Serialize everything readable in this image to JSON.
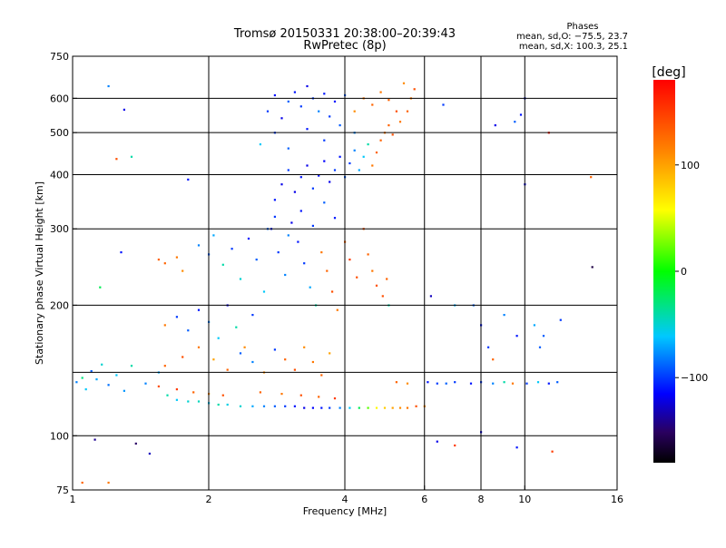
{
  "chart_data": {
    "type": "scatter",
    "title": "Tromsø 20150331 20:38:00–20:39:43",
    "subtitle": "RwPretec (8p)",
    "xlabel": "Frequency [MHz]",
    "ylabel": "Stationary phase Virtual Height [km]",
    "x_scale": "log",
    "y_scale": "log",
    "xlim": [
      1,
      16
    ],
    "ylim": [
      75,
      750
    ],
    "x_ticks": [
      1,
      2,
      4,
      6,
      8,
      10,
      16
    ],
    "x_tick_labels": [
      "1",
      "2",
      "4",
      "6",
      "8",
      "10",
      "16"
    ],
    "x_grid": [
      2,
      4,
      6,
      8,
      10
    ],
    "y_ticks": [
      75,
      100,
      200,
      300,
      400,
      500,
      600,
      750
    ],
    "y_tick_labels": [
      "75",
      "100",
      "200",
      "300",
      "400",
      "500",
      "600",
      "750"
    ],
    "y_grid": [
      100,
      140,
      200,
      300,
      400,
      500,
      600
    ],
    "grid": true,
    "phase_info": {
      "heading": "Phases",
      "line_o": "mean, sd,O: −75.5, 23.7",
      "line_x": "mean, sd,X: 100.3, 25.1"
    },
    "colorbar": {
      "label": "[deg]",
      "range": [
        -180,
        180
      ],
      "ticks": [
        100,
        0,
        -100
      ],
      "tick_labels": [
        "100",
        "0",
        "−100"
      ]
    },
    "series": [
      {
        "values": [
          [
            1.02,
            133,
            -80
          ],
          [
            1.05,
            136,
            -30
          ],
          [
            1.07,
            128,
            -60
          ],
          [
            1.1,
            141,
            -90
          ],
          [
            1.13,
            135,
            -70
          ],
          [
            1.16,
            146,
            -50
          ],
          [
            1.2,
            131,
            -85
          ],
          [
            1.25,
            138,
            -60
          ],
          [
            1.3,
            127,
            -75
          ],
          [
            1.35,
            145,
            -40
          ],
          [
            1.45,
            132,
            -80
          ],
          [
            1.55,
            140,
            -70
          ],
          [
            1.62,
            124,
            -40
          ],
          [
            1.7,
            121,
            -60
          ],
          [
            1.8,
            120,
            -50
          ],
          [
            1.9,
            120,
            -45
          ],
          [
            2.0,
            119,
            -60
          ],
          [
            2.1,
            118,
            -40
          ],
          [
            2.2,
            118,
            -55
          ],
          [
            2.35,
            117,
            -50
          ],
          [
            2.5,
            117,
            -70
          ],
          [
            2.65,
            117,
            -80
          ],
          [
            2.8,
            117,
            -90
          ],
          [
            2.95,
            117,
            -100
          ],
          [
            3.1,
            117,
            -110
          ],
          [
            3.25,
            116,
            -120
          ],
          [
            3.4,
            116,
            -115
          ],
          [
            3.55,
            116,
            -110
          ],
          [
            3.7,
            116,
            -100
          ],
          [
            3.9,
            116,
            -80
          ],
          [
            4.1,
            116,
            -60
          ],
          [
            4.3,
            116,
            -20
          ],
          [
            4.5,
            116,
            20
          ],
          [
            4.7,
            116,
            60
          ],
          [
            4.9,
            116,
            80
          ],
          [
            5.1,
            116,
            100
          ],
          [
            5.3,
            116,
            110
          ],
          [
            5.5,
            116,
            120
          ],
          [
            5.75,
            117,
            140
          ],
          [
            6.0,
            117,
            110
          ],
          [
            5.2,
            133,
            130
          ],
          [
            5.5,
            132,
            110
          ],
          [
            6.1,
            133,
            -110
          ],
          [
            6.4,
            132,
            -100
          ],
          [
            6.7,
            132,
            -90
          ],
          [
            7.0,
            133,
            -100
          ],
          [
            7.6,
            132,
            -110
          ],
          [
            8.0,
            133,
            -100
          ],
          [
            8.5,
            132,
            -80
          ],
          [
            9.0,
            133,
            -40
          ],
          [
            9.4,
            132,
            120
          ],
          [
            10.1,
            132,
            -100
          ],
          [
            10.7,
            133,
            -60
          ],
          [
            11.3,
            132,
            -110
          ],
          [
            11.8,
            133,
            -90
          ],
          [
            1.6,
            180,
            120
          ],
          [
            1.7,
            188,
            -100
          ],
          [
            1.8,
            175,
            -90
          ],
          [
            1.9,
            195,
            -110
          ],
          [
            2.0,
            183,
            -80
          ],
          [
            2.1,
            168,
            -60
          ],
          [
            2.2,
            200,
            -120
          ],
          [
            2.3,
            178,
            -40
          ],
          [
            2.4,
            160,
            110
          ],
          [
            2.5,
            190,
            -100
          ],
          [
            1.6,
            145,
            130
          ],
          [
            1.75,
            152,
            140
          ],
          [
            1.9,
            160,
            120
          ],
          [
            2.05,
            150,
            100
          ],
          [
            2.2,
            142,
            130
          ],
          [
            2.35,
            155,
            -90
          ],
          [
            2.5,
            148,
            -80
          ],
          [
            2.65,
            140,
            110
          ],
          [
            2.8,
            158,
            -100
          ],
          [
            2.95,
            150,
            130
          ],
          [
            3.1,
            142,
            140
          ],
          [
            3.25,
            160,
            110
          ],
          [
            3.4,
            148,
            120
          ],
          [
            3.55,
            138,
            130
          ],
          [
            3.7,
            155,
            100
          ],
          [
            1.55,
            130,
            140
          ],
          [
            1.7,
            128,
            150
          ],
          [
            1.85,
            126,
            130
          ],
          [
            2.0,
            125,
            110
          ],
          [
            2.15,
            124,
            140
          ],
          [
            2.6,
            126,
            130
          ],
          [
            2.9,
            125,
            120
          ],
          [
            3.2,
            124,
            140
          ],
          [
            3.5,
            123,
            130
          ],
          [
            3.8,
            122,
            150
          ],
          [
            1.6,
            250,
            130
          ],
          [
            1.7,
            258,
            120
          ],
          [
            1.75,
            240,
            110
          ],
          [
            1.9,
            275,
            -80
          ],
          [
            2.0,
            262,
            -90
          ],
          [
            2.05,
            290,
            -70
          ],
          [
            2.15,
            248,
            -40
          ],
          [
            2.25,
            270,
            -100
          ],
          [
            2.35,
            230,
            -50
          ],
          [
            2.45,
            285,
            -110
          ],
          [
            2.55,
            255,
            -90
          ],
          [
            2.65,
            215,
            -60
          ],
          [
            2.75,
            300,
            -110
          ],
          [
            2.85,
            265,
            -100
          ],
          [
            2.95,
            235,
            -80
          ],
          [
            3.05,
            310,
            -120
          ],
          [
            3.15,
            280,
            -110
          ],
          [
            3.25,
            250,
            -100
          ],
          [
            3.35,
            220,
            -70
          ],
          [
            3.45,
            200,
            -40
          ],
          [
            3.55,
            265,
            120
          ],
          [
            3.65,
            240,
            130
          ],
          [
            3.75,
            215,
            140
          ],
          [
            3.85,
            195,
            120
          ],
          [
            4.0,
            280,
            130
          ],
          [
            4.1,
            255,
            150
          ],
          [
            4.25,
            232,
            140
          ],
          [
            4.4,
            300,
            140
          ],
          [
            4.5,
            262,
            130
          ],
          [
            4.6,
            240,
            120
          ],
          [
            4.7,
            222,
            140
          ],
          [
            4.85,
            210,
            140
          ],
          [
            4.95,
            230,
            130
          ],
          [
            2.8,
            350,
            -110
          ],
          [
            2.9,
            380,
            -120
          ],
          [
            3.0,
            410,
            -100
          ],
          [
            3.1,
            365,
            -120
          ],
          [
            3.2,
            395,
            -110
          ],
          [
            3.3,
            420,
            -120
          ],
          [
            3.4,
            372,
            -100
          ],
          [
            3.5,
            398,
            -110
          ],
          [
            3.6,
            430,
            -115
          ],
          [
            3.7,
            385,
            -120
          ],
          [
            3.8,
            410,
            -100
          ],
          [
            3.9,
            440,
            -110
          ],
          [
            4.0,
            395,
            -90
          ],
          [
            4.1,
            425,
            -100
          ],
          [
            4.2,
            455,
            -80
          ],
          [
            4.3,
            410,
            -70
          ],
          [
            4.4,
            440,
            -60
          ],
          [
            4.5,
            470,
            -40
          ],
          [
            4.6,
            420,
            120
          ],
          [
            4.7,
            450,
            130
          ],
          [
            4.8,
            480,
            130
          ],
          [
            4.9,
            500,
            120
          ],
          [
            5.0,
            520,
            130
          ],
          [
            5.1,
            495,
            140
          ],
          [
            5.3,
            530,
            120
          ],
          [
            5.5,
            560,
            130
          ],
          [
            5.6,
            600,
            120
          ],
          [
            5.7,
            630,
            140
          ],
          [
            2.7,
            560,
            -100
          ],
          [
            2.8,
            610,
            -110
          ],
          [
            2.9,
            540,
            -120
          ],
          [
            3.0,
            590,
            -90
          ],
          [
            3.1,
            620,
            -110
          ],
          [
            3.2,
            575,
            -100
          ],
          [
            3.3,
            640,
            -120
          ],
          [
            3.4,
            600,
            -100
          ],
          [
            3.5,
            560,
            -80
          ],
          [
            3.6,
            615,
            -110
          ],
          [
            3.7,
            545,
            -100
          ],
          [
            3.8,
            590,
            -110
          ],
          [
            4.0,
            610,
            -90
          ],
          [
            4.2,
            560,
            110
          ],
          [
            4.4,
            600,
            120
          ],
          [
            4.6,
            580,
            130
          ],
          [
            4.8,
            620,
            120
          ],
          [
            5.0,
            595,
            130
          ],
          [
            5.2,
            560,
            140
          ],
          [
            5.4,
            650,
            110
          ],
          [
            2.7,
            300,
            -90
          ],
          [
            2.8,
            320,
            -100
          ],
          [
            3.0,
            290,
            -80
          ],
          [
            3.2,
            330,
            -110
          ],
          [
            3.4,
            305,
            -100
          ],
          [
            3.6,
            345,
            -90
          ],
          [
            3.8,
            318,
            -110
          ],
          [
            2.6,
            470,
            -60
          ],
          [
            2.8,
            500,
            -100
          ],
          [
            3.0,
            460,
            -90
          ],
          [
            3.3,
            510,
            -110
          ],
          [
            3.6,
            480,
            -100
          ],
          [
            3.9,
            520,
            -90
          ],
          [
            4.2,
            500,
            -80
          ],
          [
            1.15,
            220,
            -20
          ],
          [
            1.2,
            640,
            -80
          ],
          [
            1.3,
            565,
            -120
          ],
          [
            1.25,
            435,
            140
          ],
          [
            1.35,
            440,
            -40
          ],
          [
            1.28,
            265,
            -110
          ],
          [
            1.8,
            390,
            -110
          ],
          [
            1.55,
            255,
            130
          ],
          [
            1.12,
            98,
            -140
          ],
          [
            1.38,
            96,
            -150
          ],
          [
            1.48,
            91,
            -130
          ],
          [
            1.05,
            78,
            130
          ],
          [
            1.2,
            78,
            120
          ],
          [
            6.4,
            97,
            -120
          ],
          [
            7.0,
            95,
            150
          ],
          [
            8.0,
            102,
            -120
          ],
          [
            9.6,
            94,
            -110
          ],
          [
            11.5,
            92,
            150
          ],
          [
            8.6,
            520,
            -120
          ],
          [
            9.5,
            530,
            -90
          ],
          [
            9.8,
            550,
            -110
          ],
          [
            10.0,
            600,
            -110
          ],
          [
            10.0,
            380,
            -120
          ],
          [
            11.3,
            500,
            170
          ],
          [
            6.6,
            580,
            -100
          ],
          [
            14.0,
            395,
            130
          ],
          [
            14.1,
            245,
            -160
          ],
          [
            7.7,
            200,
            -90
          ],
          [
            8.0,
            180,
            -110
          ],
          [
            8.3,
            160,
            -100
          ],
          [
            9.0,
            190,
            -80
          ],
          [
            9.6,
            170,
            -110
          ],
          [
            10.5,
            180,
            -70
          ],
          [
            11.0,
            170,
            -90
          ],
          [
            12.0,
            185,
            -100
          ],
          [
            10.8,
            160,
            -90
          ],
          [
            5.0,
            200,
            -40
          ],
          [
            6.2,
            210,
            -130
          ],
          [
            7.0,
            200,
            -70
          ],
          [
            8.5,
            150,
            130
          ]
        ]
      }
    ]
  }
}
